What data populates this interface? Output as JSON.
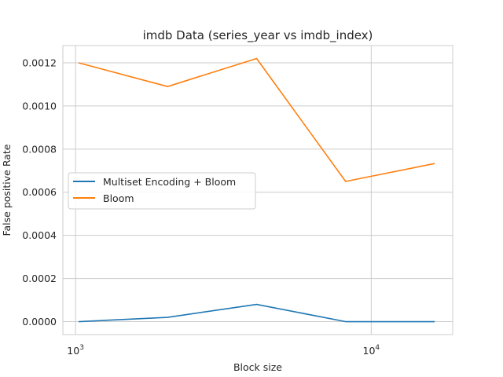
{
  "chart_data": {
    "type": "line",
    "title": "imdb Data (series_year vs imdb_index)",
    "xlabel": "Block size",
    "ylabel": "False positive Rate",
    "xscale": "log",
    "xlim": [
      1024,
      16384
    ],
    "ylim": [
      -6e-05,
      0.00128
    ],
    "x": [
      1024,
      2048,
      4096,
      8192,
      16384
    ],
    "x_ticks": [
      {
        "value": 1000,
        "base": "10",
        "exp": "3"
      },
      {
        "value": 10000,
        "base": "10",
        "exp": "4"
      }
    ],
    "y_ticks": [
      "0.0000",
      "0.0002",
      "0.0004",
      "0.0006",
      "0.0008",
      "0.0010",
      "0.0012"
    ],
    "y_tick_values": [
      0,
      0.0002,
      0.0004,
      0.0006,
      0.0008,
      0.001,
      0.0012
    ],
    "series": [
      {
        "name": "Multiset Encoding + Bloom",
        "color": "#1f77b4",
        "values": [
          0.0,
          2e-05,
          8e-05,
          0.0,
          0.0
        ]
      },
      {
        "name": "Bloom",
        "color": "#ff7f0e",
        "values": [
          0.0012,
          0.00109,
          0.00122,
          0.00065,
          0.000733
        ]
      }
    ],
    "grid": true,
    "legend": "center-left"
  }
}
